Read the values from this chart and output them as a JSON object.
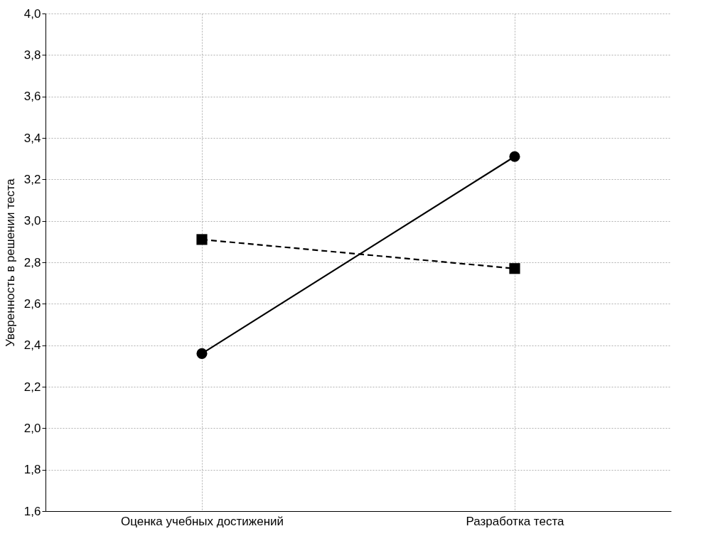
{
  "chart_data": {
    "type": "line",
    "ylabel": "Уверенность в решении теста",
    "categories": [
      "Оценка учебных достижений",
      "Разработка теста"
    ],
    "series": [
      {
        "color": "#000000",
        "values": [
          2.36,
          3.31
        ],
        "marker": "circle",
        "line_style": "solid"
      },
      {
        "color": "#000000",
        "values": [
          2.91,
          2.77
        ],
        "marker": "square",
        "line_style": "dashed"
      }
    ],
    "ylim": [
      1.6,
      4.0
    ],
    "yticks": [
      {
        "value": 1.6,
        "label": "1,6"
      },
      {
        "value": 1.8,
        "label": "1,8"
      },
      {
        "value": 2.0,
        "label": "2,0"
      },
      {
        "value": 2.2,
        "label": "2,2"
      },
      {
        "value": 2.4,
        "label": "2,4"
      },
      {
        "value": 2.6,
        "label": "2,6"
      },
      {
        "value": 2.8,
        "label": "2,8"
      },
      {
        "value": 3.0,
        "label": "3,0"
      },
      {
        "value": 3.2,
        "label": "3,2"
      },
      {
        "value": 3.4,
        "label": "3,4"
      },
      {
        "value": 3.6,
        "label": "3,6"
      },
      {
        "value": 3.8,
        "label": "3,8"
      },
      {
        "value": 4.0,
        "label": "4,0"
      }
    ],
    "grid": true
  }
}
